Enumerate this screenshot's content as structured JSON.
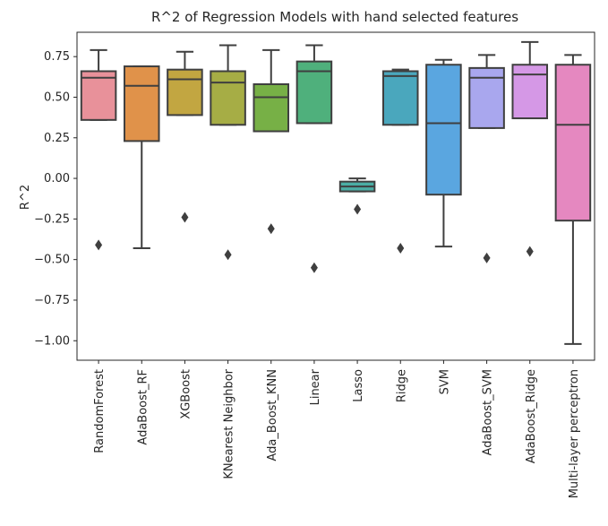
{
  "chart_data": {
    "type": "box",
    "title": "R^2 of Regression Models with hand selected features",
    "xlabel": "",
    "ylabel": "R^2",
    "ylim": [
      -1.12,
      0.9
    ],
    "yticks": [
      0.75,
      0.5,
      0.25,
      0.0,
      -0.25,
      -0.5,
      -0.75,
      -1.0
    ],
    "ytick_labels": [
      "0.75",
      "0.50",
      "0.25",
      "0.00",
      "−0.25",
      "−0.50",
      "−0.75",
      "−1.00"
    ],
    "grid": false,
    "categories": [
      "RandomForest",
      "AdaBoost_RF",
      "XGBoost",
      "KNearest Neighbor",
      "Ada_Boost_KNN",
      "Linear",
      "Lasso",
      "Ridge",
      "SVM",
      "AdaBoost_SVM",
      "AdaBoost_Ridge",
      "Multi-layer perceptron"
    ],
    "boxes": [
      {
        "whisker_low": 0.36,
        "q1": 0.36,
        "median": 0.62,
        "q3": 0.66,
        "whisker_high": 0.79,
        "fliers": [
          -0.41
        ],
        "color": "#e8919a"
      },
      {
        "whisker_low": -0.43,
        "q1": 0.23,
        "median": 0.57,
        "q3": 0.69,
        "whisker_high": 0.69,
        "fliers": [],
        "color": "#e0924a"
      },
      {
        "whisker_low": 0.39,
        "q1": 0.39,
        "median": 0.61,
        "q3": 0.67,
        "whisker_high": 0.78,
        "fliers": [
          -0.24
        ],
        "color": "#c2a641"
      },
      {
        "whisker_low": 0.33,
        "q1": 0.33,
        "median": 0.59,
        "q3": 0.66,
        "whisker_high": 0.82,
        "fliers": [
          -0.47
        ],
        "color": "#a6ad45"
      },
      {
        "whisker_low": 0.29,
        "q1": 0.29,
        "median": 0.5,
        "q3": 0.58,
        "whisker_high": 0.79,
        "fliers": [
          -0.31
        ],
        "color": "#77b046"
      },
      {
        "whisker_low": 0.34,
        "q1": 0.34,
        "median": 0.66,
        "q3": 0.72,
        "whisker_high": 0.82,
        "fliers": [
          -0.55
        ],
        "color": "#4fb07c"
      },
      {
        "whisker_low": -0.08,
        "q1": -0.08,
        "median": -0.05,
        "q3": -0.02,
        "whisker_high": 0.0,
        "fliers": [
          -0.19
        ],
        "color": "#4bada4"
      },
      {
        "whisker_low": 0.33,
        "q1": 0.33,
        "median": 0.63,
        "q3": 0.66,
        "whisker_high": 0.67,
        "fliers": [
          -0.43
        ],
        "color": "#4aa7bd"
      },
      {
        "whisker_low": -0.42,
        "q1": -0.1,
        "median": 0.34,
        "q3": 0.7,
        "whisker_high": 0.73,
        "fliers": [],
        "color": "#5aa6e0"
      },
      {
        "whisker_low": 0.31,
        "q1": 0.31,
        "median": 0.62,
        "q3": 0.68,
        "whisker_high": 0.76,
        "fliers": [
          -0.49
        ],
        "color": "#a9a7ee"
      },
      {
        "whisker_low": 0.37,
        "q1": 0.37,
        "median": 0.64,
        "q3": 0.7,
        "whisker_high": 0.84,
        "fliers": [
          -0.45
        ],
        "color": "#d598e6"
      },
      {
        "whisker_low": -1.02,
        "q1": -0.26,
        "median": 0.33,
        "q3": 0.7,
        "whisker_high": 0.76,
        "fliers": [],
        "color": "#e588c0"
      }
    ]
  }
}
